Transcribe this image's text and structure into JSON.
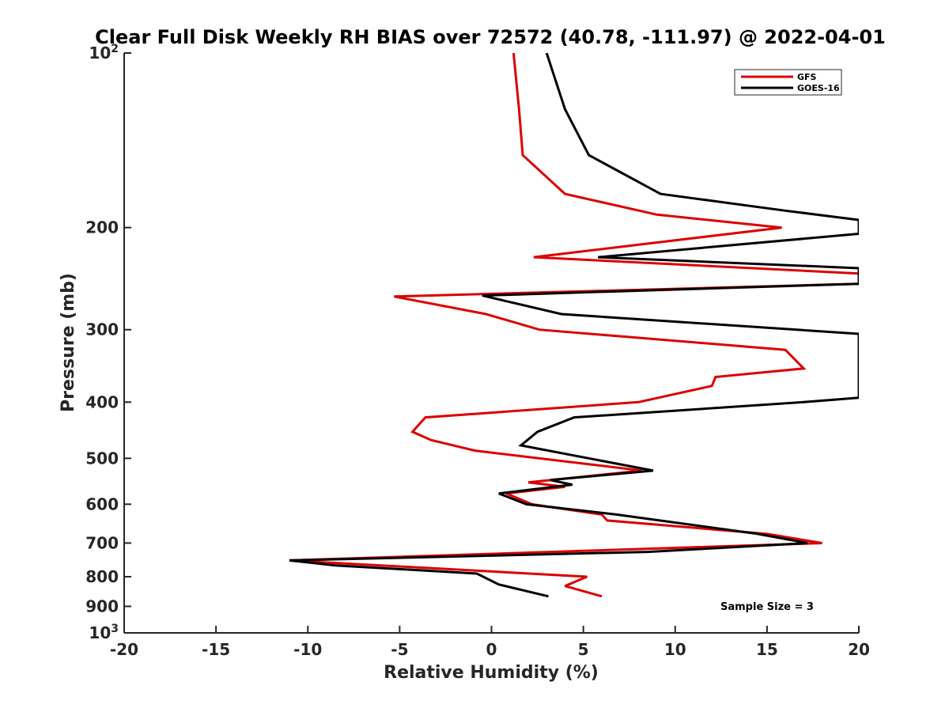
{
  "chart_data": {
    "type": "line",
    "title": "Clear Full Disk Weekly RH BIAS over 72572 (40.78, -111.97) @ 2022-04-01",
    "xlabel": "Relative Humidity (%)",
    "ylabel": "Pressure (mb)",
    "xlim": [
      -20,
      20
    ],
    "ylim": [
      100,
      1000
    ],
    "y_scale": "log",
    "y_reversed": true,
    "xticks": [
      -20,
      -15,
      -10,
      -5,
      0,
      5,
      10,
      15,
      20
    ],
    "xtick_labels": [
      "-20",
      "-15",
      "-10",
      "-5",
      "0",
      "5",
      "10",
      "15",
      "20"
    ],
    "yticks": [
      200,
      300,
      400,
      500,
      600,
      700,
      800,
      900
    ],
    "ytick_labels": [
      "200",
      "300",
      "400",
      "500",
      "600",
      "700",
      "800",
      "900"
    ],
    "ytick_decades": [
      {
        "value": 100,
        "base": "10",
        "exp": "2"
      },
      {
        "value": 1000,
        "base": "10",
        "exp": "3"
      }
    ],
    "legend_position": "top-right",
    "annotation": "Sample Size = 3",
    "series": [
      {
        "name": "GFS",
        "color": "#dd0000",
        "points": [
          [
            1.2,
            100
          ],
          [
            1.5,
            125
          ],
          [
            1.7,
            150
          ],
          [
            4,
            175
          ],
          [
            9,
            190
          ],
          [
            15.8,
            200
          ],
          [
            2.3,
            225
          ],
          [
            20,
            240
          ],
          [
            20,
            250
          ],
          [
            -5.3,
            263
          ],
          [
            -0.3,
            282
          ],
          [
            2.6,
            300
          ],
          [
            16,
            325
          ],
          [
            17,
            350
          ],
          [
            12.2,
            362
          ],
          [
            12,
            375
          ],
          [
            8,
            400
          ],
          [
            -3.6,
            425
          ],
          [
            -4.3,
            450
          ],
          [
            -3.3,
            465
          ],
          [
            -0.9,
            485
          ],
          [
            8.2,
            525
          ],
          [
            2,
            550
          ],
          [
            4,
            560
          ],
          [
            0.8,
            575
          ],
          [
            2.2,
            600
          ],
          [
            6,
            625
          ],
          [
            6.3,
            640
          ],
          [
            15,
            675
          ],
          [
            18,
            700
          ],
          [
            -11,
            750
          ],
          [
            5.2,
            800
          ],
          [
            4.8,
            810
          ],
          [
            4,
            830
          ],
          [
            6,
            865
          ]
        ]
      },
      {
        "name": "GOES-16",
        "color": "#000000",
        "points": [
          [
            3,
            100
          ],
          [
            4,
            125
          ],
          [
            5.3,
            150
          ],
          [
            9.2,
            175
          ],
          [
            16,
            187
          ],
          [
            20,
            194
          ],
          [
            20,
            205
          ],
          [
            5.8,
            225
          ],
          [
            20,
            235
          ],
          [
            20,
            250
          ],
          [
            -0.5,
            262
          ],
          [
            3.8,
            282
          ],
          [
            20,
            305
          ],
          [
            20,
            393
          ],
          [
            17,
            400
          ],
          [
            4.5,
            425
          ],
          [
            2.5,
            450
          ],
          [
            1.6,
            475
          ],
          [
            8.8,
            525
          ],
          [
            3.2,
            545
          ],
          [
            4.4,
            555
          ],
          [
            0.4,
            575
          ],
          [
            1.9,
            600
          ],
          [
            6.8,
            625
          ],
          [
            14.5,
            675
          ],
          [
            17.2,
            700
          ],
          [
            8.5,
            725
          ],
          [
            -11,
            750
          ],
          [
            -8.5,
            765
          ],
          [
            -0.8,
            790
          ],
          [
            0.4,
            825
          ],
          [
            3.1,
            865
          ]
        ]
      }
    ]
  }
}
